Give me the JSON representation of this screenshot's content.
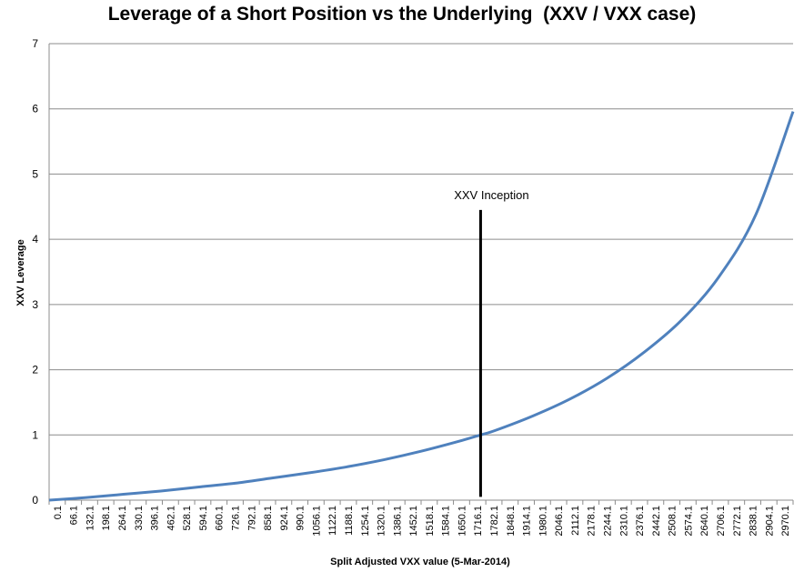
{
  "chart_data": {
    "type": "line",
    "title": "Leverage of a Short Position vs the Underlying  (XXV / VXX case)",
    "xlabel": "Split Adjusted VXX value (5-Mar-2014)",
    "ylabel": "XXV Leverage",
    "ylim": [
      0,
      7
    ],
    "yticks": [
      "0",
      "1",
      "2",
      "3",
      "4",
      "5",
      "6",
      "7"
    ],
    "xlim": [
      0.1,
      3000
    ],
    "xtick_labels": [
      "0.1",
      "66.1",
      "132.1",
      "198.1",
      "264.1",
      "330.1",
      "396.1",
      "462.1",
      "528.1",
      "594.1",
      "660.1",
      "726.1",
      "792.1",
      "858.1",
      "924.1",
      "990.1",
      "1056.1",
      "1122.1",
      "1188.1",
      "1254.1",
      "1320.1",
      "1386.1",
      "1452.1",
      "1518.1",
      "1584.1",
      "1650.1",
      "1716.1",
      "1782.1",
      "1848.1",
      "1914.1",
      "1980.1",
      "2046.1",
      "2112.1",
      "2178.1",
      "2244.1",
      "2310.1",
      "2376.1",
      "2442.1",
      "2508.1",
      "2574.1",
      "2640.1",
      "2706.1",
      "2772.1",
      "2838.1",
      "2904.1",
      "2970.1"
    ],
    "grid": true,
    "series": [
      {
        "color": "#4f81bd",
        "x": [
          0.1,
          150,
          300,
          450,
          600,
          750,
          900,
          1050,
          1200,
          1350,
          1500,
          1650,
          1740,
          1800,
          1950,
          2100,
          2250,
          2400,
          2550,
          2700,
          2850,
          3000
        ],
        "y": [
          0.0,
          0.04,
          0.09,
          0.14,
          0.2,
          0.26,
          0.34,
          0.42,
          0.51,
          0.62,
          0.75,
          0.9,
          1.0,
          1.07,
          1.29,
          1.55,
          1.87,
          2.27,
          2.76,
          3.42,
          4.38,
          5.96
        ]
      }
    ],
    "annotations": [
      {
        "text": "XXV Inception",
        "x": 1740,
        "y_range": [
          0.05,
          4.45
        ]
      }
    ]
  }
}
